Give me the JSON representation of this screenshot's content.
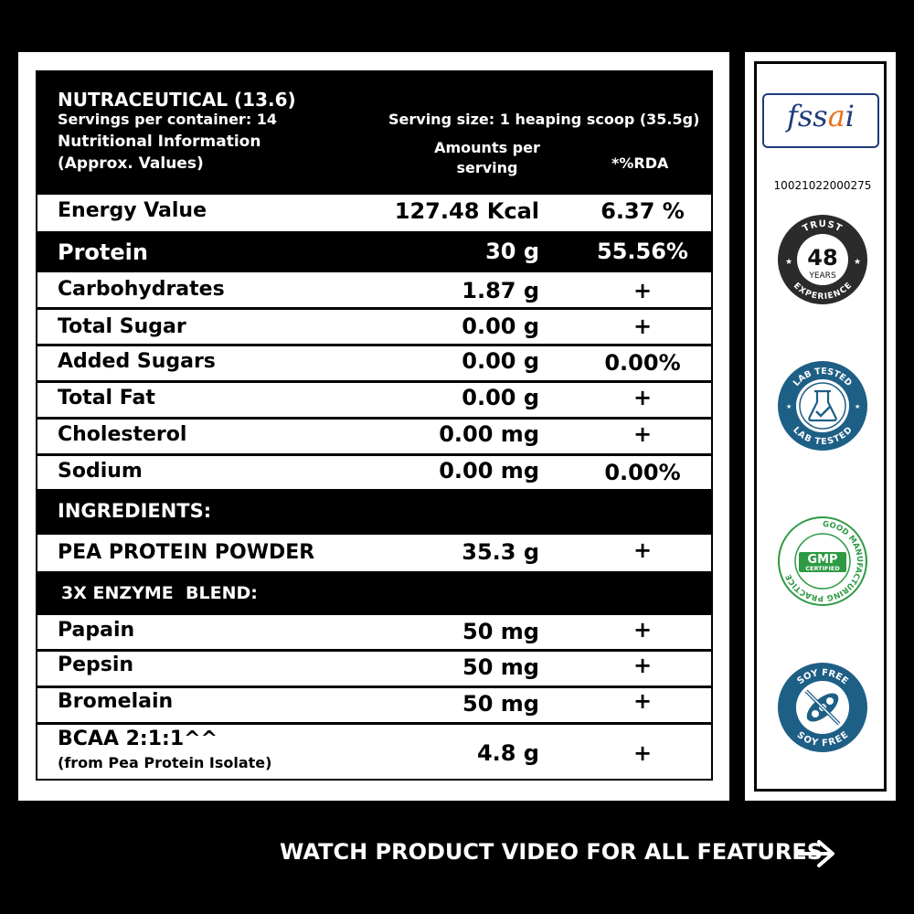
{
  "header": {
    "title": "NUTRACEUTICAL (13.6)",
    "servings": "Servings per container: 14",
    "info": "Nutritional Information",
    "approx": "(Approx. Values)",
    "serving_size": "Serving size: 1 heaping scoop (35.5g)",
    "amounts": "Amounts per serving",
    "rda": "*%RDA"
  },
  "nutrients": [
    {
      "name": "Energy Value",
      "amount": "127.48 Kcal",
      "rda": "6.37 %"
    },
    {
      "name": "Protein",
      "amount": "30 g",
      "rda": "55.56%"
    },
    {
      "name": "Carbohydrates",
      "amount": "1.87 g",
      "rda": "+"
    },
    {
      "name": "Total Sugar",
      "amount": "0.00 g",
      "rda": "+"
    },
    {
      "name": "Added Sugars",
      "amount": "0.00 g",
      "rda": "0.00%"
    },
    {
      "name": "Total Fat",
      "amount": "0.00 g",
      "rda": "+"
    },
    {
      "name": "Cholesterol",
      "amount": "0.00 mg",
      "rda": "+"
    },
    {
      "name": "Sodium",
      "amount": "0.00 mg",
      "rda": "0.00%"
    }
  ],
  "ingredients": {
    "heading": "INGREDIENTS:",
    "items": [
      {
        "name": "PEA PROTEIN POWDER",
        "amount": "35.3 g",
        "rda": "+"
      }
    ]
  },
  "enzyme_blend": {
    "heading": "3X ENZYME  BLEND:",
    "items": [
      {
        "name": "Papain",
        "amount": "50 mg",
        "rda": "+"
      },
      {
        "name": "Pepsin",
        "amount": "50 mg",
        "rda": "+"
      },
      {
        "name": "Bromelain",
        "amount": "50 mg",
        "rda": "+"
      }
    ],
    "bcaa": {
      "name": "BCAA 2:1:1^^",
      "sub": "(from Pea Protein Isolate)",
      "amount": "4.8 g",
      "rda": "+"
    }
  },
  "sidebar": {
    "fssai_logo": "fssai",
    "fssai_number": "10021022000275",
    "badges": [
      {
        "icon": "trust-48-years-icon",
        "top": "TRUST",
        "number": "48",
        "mid": "YEARS",
        "bottom": "EXPERIENCE"
      },
      {
        "icon": "lab-tested-icon",
        "top": "LAB TESTED",
        "bottom": "LAB TESTED"
      },
      {
        "icon": "gmp-certified-icon",
        "ring": "GOOD MANUFACTURING PRACTICE",
        "main": "GMP",
        "sub": "CERTIFIED"
      },
      {
        "icon": "soy-free-icon",
        "top": "SOY FREE",
        "bottom": "SOY FREE"
      }
    ]
  },
  "footer": {
    "cta": "WATCH PRODUCT VIDEO FOR ALL FEATURES"
  },
  "colors": {
    "background": "#000000",
    "panel": "#ffffff",
    "badge_blue": "#1e5f86",
    "badge_green": "#2e9a44",
    "fssai_blue": "#1f3b7a",
    "fssai_orange": "#e8731a"
  }
}
